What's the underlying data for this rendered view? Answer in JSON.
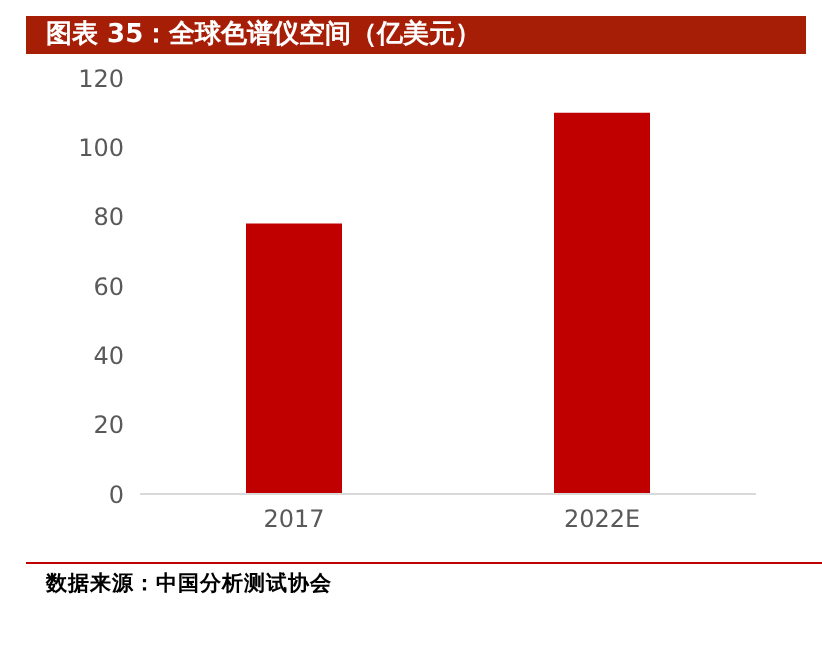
{
  "chart_data": {
    "type": "bar",
    "title": "图表 35：全球色谱仪空间（亿美元）",
    "categories": [
      "2017",
      "2022E"
    ],
    "values": [
      78,
      110
    ],
    "color": "#c00000",
    "ylim": [
      0,
      120
    ],
    "yticks": [
      0,
      20,
      40,
      60,
      80,
      100,
      120
    ],
    "grid": false,
    "annotations": [
      "数据来源：中国分析测试协会"
    ]
  }
}
